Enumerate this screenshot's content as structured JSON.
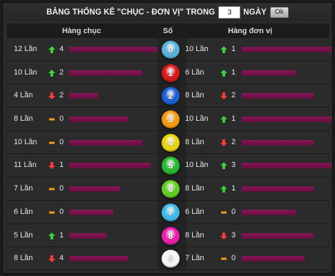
{
  "header": {
    "title_prefix": "BẢNG THỐNG KÊ \"CHỤC - ĐƠN VỊ\" TRONG",
    "days_value": "3",
    "days_label": "NGÀY",
    "ok_label": "Ok"
  },
  "columns": {
    "tens": "Hàng chục",
    "number": "Số",
    "units": "Hàng đơn vị"
  },
  "rows": [
    {
      "ball": "0",
      "ball_color": "#5ab0d8",
      "tens_count": "12 Lần",
      "tens_dir": "up",
      "tens_delta": "4",
      "tens_ratio": 1.0,
      "units_count": "10 Lần",
      "units_dir": "up",
      "units_delta": "1",
      "units_ratio": 1.0
    },
    {
      "ball": "1",
      "ball_color": "#d61a1a",
      "tens_count": "10 Lần",
      "tens_dir": "up",
      "tens_delta": "2",
      "tens_ratio": 0.83,
      "units_count": "6 Lần",
      "units_dir": "up",
      "units_delta": "1",
      "units_ratio": 0.6
    },
    {
      "ball": "2",
      "ball_color": "#1c5fd0",
      "tens_count": "4 Lần",
      "tens_dir": "down",
      "tens_delta": "2",
      "tens_ratio": 0.33,
      "units_count": "8 Lần",
      "units_dir": "down",
      "units_delta": "2",
      "units_ratio": 0.8
    },
    {
      "ball": "3",
      "ball_color": "#f29a10",
      "tens_count": "8 Lần",
      "tens_dir": "none",
      "tens_delta": "0",
      "tens_ratio": 0.67,
      "units_count": "10 Lần",
      "units_dir": "up",
      "units_delta": "1",
      "units_ratio": 1.0
    },
    {
      "ball": "4",
      "ball_color": "#e6d20e",
      "tens_count": "10 Lần",
      "tens_dir": "none",
      "tens_delta": "0",
      "tens_ratio": 0.83,
      "units_count": "8 Lần",
      "units_dir": "down",
      "units_delta": "2",
      "units_ratio": 0.8
    },
    {
      "ball": "5",
      "ball_color": "#25b82e",
      "tens_count": "11 Lần",
      "tens_dir": "down",
      "tens_delta": "1",
      "tens_ratio": 0.92,
      "units_count": "10 Lần",
      "units_dir": "up",
      "units_delta": "3",
      "units_ratio": 1.0
    },
    {
      "ball": "6",
      "ball_color": "#62cc22",
      "tens_count": "7 Lần",
      "tens_dir": "none",
      "tens_delta": "0",
      "tens_ratio": 0.58,
      "units_count": "8 Lần",
      "units_dir": "up",
      "units_delta": "1",
      "units_ratio": 0.8
    },
    {
      "ball": "7",
      "ball_color": "#3fb8e6",
      "tens_count": "6 Lần",
      "tens_dir": "none",
      "tens_delta": "0",
      "tens_ratio": 0.5,
      "units_count": "6 Lần",
      "units_dir": "none",
      "units_delta": "0",
      "units_ratio": 0.6
    },
    {
      "ball": "8",
      "ball_color": "#e61fa8",
      "tens_count": "5 Lần",
      "tens_dir": "up",
      "tens_delta": "1",
      "tens_ratio": 0.42,
      "units_count": "8 Lần",
      "units_dir": "down",
      "units_delta": "3",
      "units_ratio": 0.8
    },
    {
      "ball": "9",
      "ball_color": "#f4f4f4",
      "tens_count": "8 Lần",
      "tens_dir": "down",
      "tens_delta": "4",
      "tens_ratio": 0.67,
      "units_count": "7 Lần",
      "units_dir": "none",
      "units_delta": "0",
      "units_ratio": 0.7
    }
  ]
}
